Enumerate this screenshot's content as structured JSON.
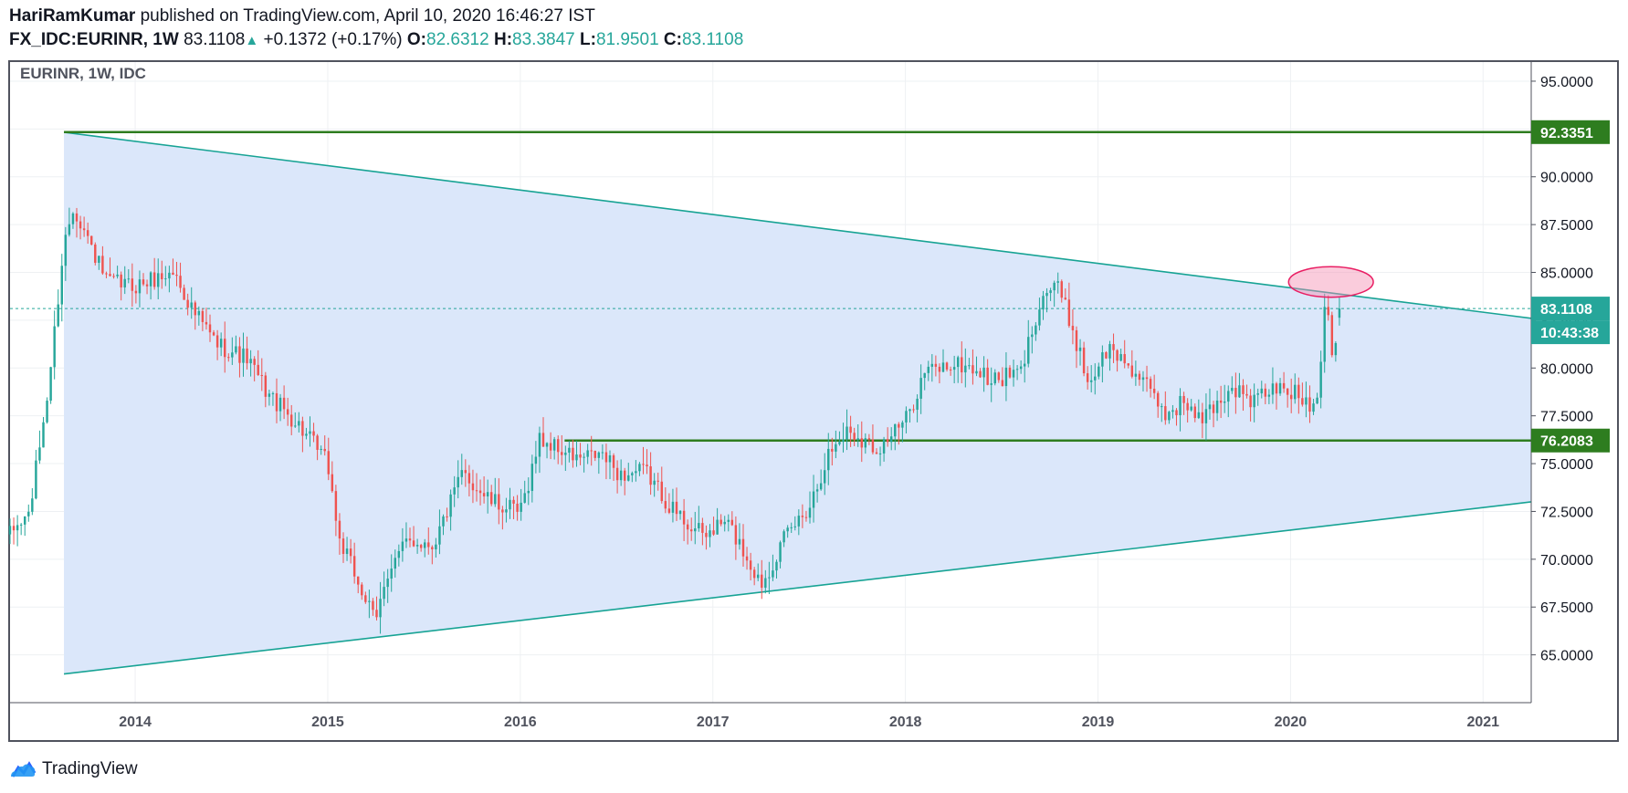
{
  "header": {
    "author": "HariRamKumar",
    "published_text": "published on TradingView.com, April 10, 2020 16:46:27 IST",
    "symbol": "FX_IDC:EURINR, 1W",
    "last": "83.1108",
    "change": "+0.1372 (+0.17%)",
    "o_label": "O:",
    "o_value": "82.6312",
    "h_label": "H:",
    "h_value": "83.3847",
    "l_label": "L:",
    "l_value": "81.9501",
    "c_label": "C:",
    "c_value": "83.1108"
  },
  "footer": {
    "brand": "TradingView"
  },
  "colors": {
    "up": "#26a69a",
    "down": "#ef5350",
    "wedge_fill": "#dbe7fa",
    "wedge_line": "#17a394",
    "level_line": "#2e7d1f",
    "level_label_bg": "#2e7d1f",
    "price_label_bg": "#26a69a",
    "highlight": "#f48fb1"
  },
  "chart_data": {
    "type": "candlestick",
    "title": "EURINR, 1W, IDC",
    "x_axis": {
      "start": 2013.35,
      "end": 2021.25,
      "ticks": [
        "2014",
        "2015",
        "2016",
        "2017",
        "2018",
        "2019",
        "2020",
        "2021"
      ]
    },
    "y_axis": {
      "min": 62.5,
      "max": 96.0,
      "ticks": [
        "95.0000",
        "92.5000",
        "90.0000",
        "87.5000",
        "85.0000",
        "82.5000",
        "80.0000",
        "77.5000",
        "75.0000",
        "72.5000",
        "70.0000",
        "67.5000",
        "65.0000"
      ]
    },
    "price_line": {
      "value": 83.1108,
      "label": "83.1108",
      "countdown": "10:43:38"
    },
    "horizontal_levels": [
      {
        "value": 92.3351,
        "label": "92.3351",
        "x_start": 2013.63
      },
      {
        "value": 76.2083,
        "label": "76.2083",
        "x_start": 2016.23
      }
    ],
    "wedge": {
      "upper": [
        [
          2013.63,
          92.33
        ],
        [
          2021.25,
          82.6
        ]
      ],
      "lower": [
        [
          2013.63,
          64.0
        ],
        [
          2021.25,
          73.0
        ]
      ]
    },
    "highlight_ellipse": {
      "center": [
        2020.21,
        84.5
      ],
      "radius_years": 0.22,
      "radius_price": 0.8
    },
    "anchors": [
      [
        2013.35,
        71.3
      ],
      [
        2013.45,
        72.4
      ],
      [
        2013.55,
        79.0
      ],
      [
        2013.63,
        86.5
      ],
      [
        2013.68,
        88.5
      ],
      [
        2013.85,
        84.5
      ],
      [
        2014.0,
        84.3
      ],
      [
        2014.2,
        85.0
      ],
      [
        2014.3,
        83.0
      ],
      [
        2014.42,
        81.3
      ],
      [
        2014.58,
        80.5
      ],
      [
        2014.7,
        78.5
      ],
      [
        2014.85,
        77.0
      ],
      [
        2015.0,
        75.0
      ],
      [
        2015.06,
        71.0
      ],
      [
        2015.15,
        69.0
      ],
      [
        2015.25,
        66.6
      ],
      [
        2015.3,
        69.2
      ],
      [
        2015.42,
        71.0
      ],
      [
        2015.55,
        70.8
      ],
      [
        2015.7,
        74.5
      ],
      [
        2015.85,
        73.0
      ],
      [
        2016.0,
        72.4
      ],
      [
        2016.1,
        76.3
      ],
      [
        2016.3,
        75.2
      ],
      [
        2016.42,
        75.5
      ],
      [
        2016.52,
        74.4
      ],
      [
        2016.65,
        74.6
      ],
      [
        2016.8,
        72.5
      ],
      [
        2016.95,
        71.2
      ],
      [
        2017.07,
        72.0
      ],
      [
        2017.15,
        70.6
      ],
      [
        2017.25,
        68.7
      ],
      [
        2017.38,
        71.2
      ],
      [
        2017.5,
        72.8
      ],
      [
        2017.6,
        75.5
      ],
      [
        2017.7,
        76.8
      ],
      [
        2017.85,
        75.8
      ],
      [
        2018.0,
        77.2
      ],
      [
        2018.1,
        79.8
      ],
      [
        2018.25,
        80.2
      ],
      [
        2018.35,
        80.0
      ],
      [
        2018.45,
        79.3
      ],
      [
        2018.6,
        79.8
      ],
      [
        2018.7,
        83.6
      ],
      [
        2018.78,
        84.5
      ],
      [
        2018.87,
        82.0
      ],
      [
        2018.95,
        79.2
      ],
      [
        2019.05,
        81.0
      ],
      [
        2019.15,
        80.3
      ],
      [
        2019.25,
        79.0
      ],
      [
        2019.35,
        77.6
      ],
      [
        2019.45,
        78.3
      ],
      [
        2019.52,
        77.2
      ],
      [
        2019.6,
        78.0
      ],
      [
        2019.7,
        79.0
      ],
      [
        2019.8,
        78.2
      ],
      [
        2019.9,
        78.9
      ],
      [
        2020.0,
        78.8
      ],
      [
        2020.12,
        78.0
      ],
      [
        2020.15,
        79.5
      ],
      [
        2020.18,
        84.0
      ],
      [
        2020.22,
        80.8
      ],
      [
        2020.27,
        83.11
      ]
    ]
  }
}
